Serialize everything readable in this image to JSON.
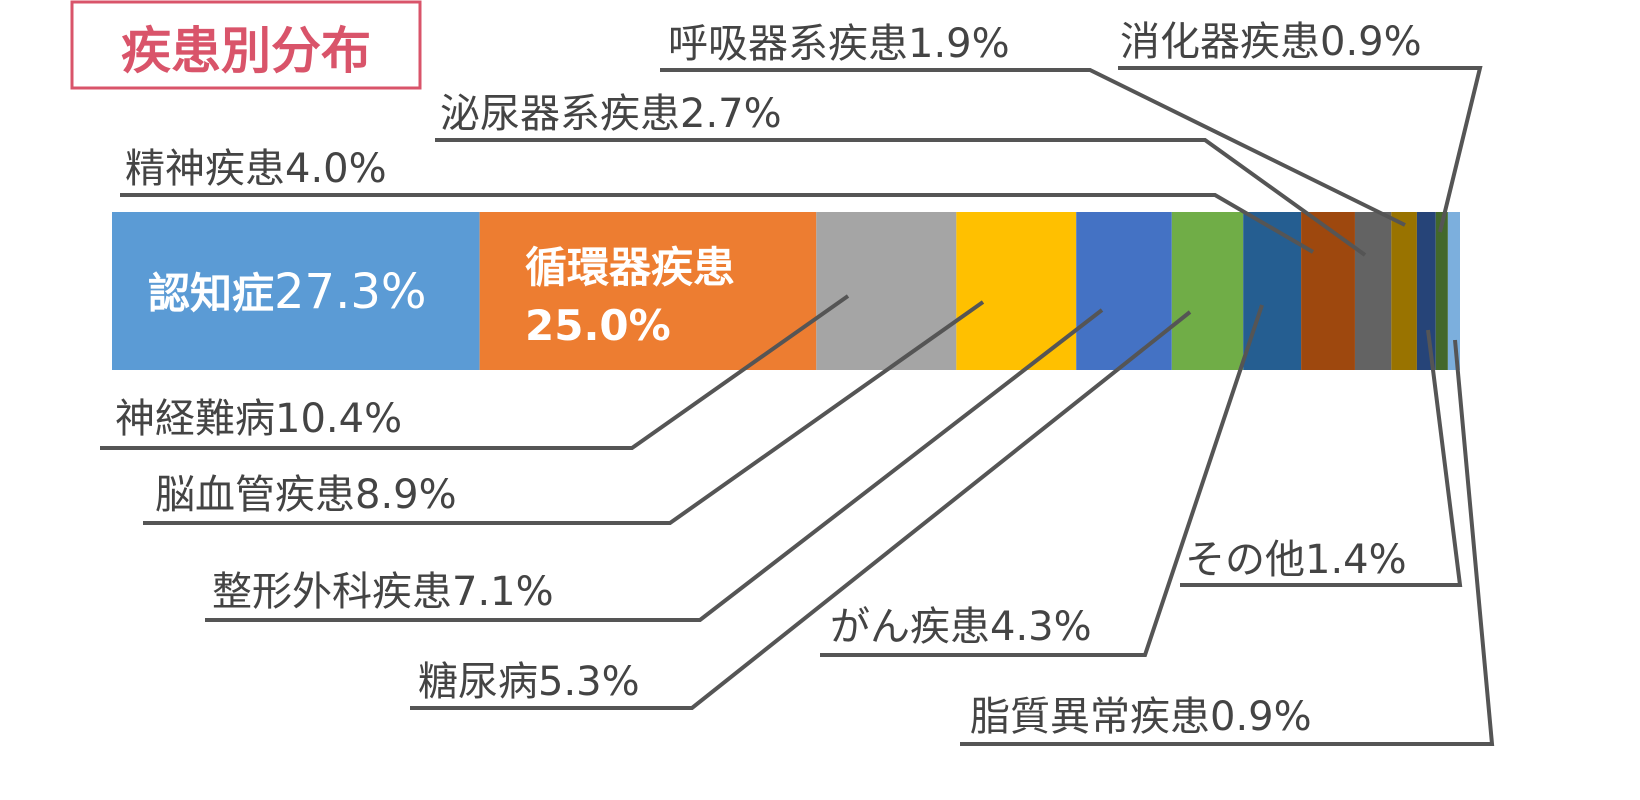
{
  "chart_data": {
    "type": "stacked-bar",
    "title": "疾患別分布",
    "categories": [
      "認知症",
      "循環器疾患",
      "神経難病",
      "脳血管疾患",
      "整形外科疾患",
      "糖尿病",
      "がん疾患",
      "精神疾患",
      "泌尿器系疾患",
      "呼吸器系疾患",
      "その他",
      "消化器疾患",
      "脂質異常疾患"
    ],
    "values": [
      27.3,
      25.0,
      10.4,
      8.9,
      7.1,
      5.3,
      4.3,
      4.0,
      2.7,
      1.9,
      1.4,
      0.9,
      0.9
    ],
    "value_labels": [
      "27.3%",
      "25.0%",
      "10.4%",
      "8.9%",
      "7.1%",
      "5.3%",
      "4.3%",
      "4.0%",
      "2.7%",
      "1.9%",
      "1.4%",
      "0.9%",
      "0.9%"
    ],
    "colors": [
      "#5b9bd5",
      "#ed7d31",
      "#a5a5a5",
      "#ffc000",
      "#4472c4",
      "#70ad47",
      "#255e91",
      "#9e480e",
      "#636363",
      "#997300",
      "#264478",
      "#43682b",
      "#7cafdd"
    ]
  }
}
